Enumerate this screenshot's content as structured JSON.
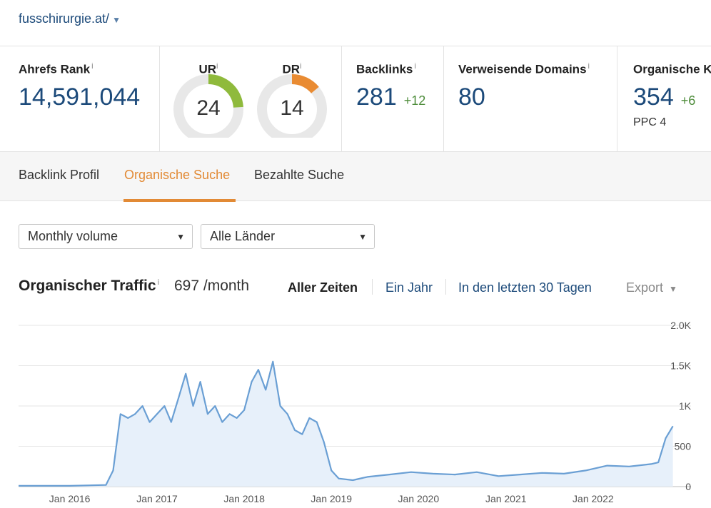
{
  "header": {
    "domain": "fusschirurgie.at/"
  },
  "metrics": {
    "ahrefs_rank": {
      "title": "Ahrefs Rank",
      "info": "i",
      "value": "14,591,044"
    },
    "ur": {
      "label": "UR",
      "info": "i",
      "value": "24",
      "fraction": 0.24,
      "color": "#8fba3c"
    },
    "dr": {
      "label": "DR",
      "info": "i",
      "value": "14",
      "fraction": 0.14,
      "color": "#e98b32"
    },
    "backlinks": {
      "title": "Backlinks",
      "info": "i",
      "value": "281",
      "delta": "+12"
    },
    "ref_domains": {
      "title": "Verweisende Domains",
      "info": "i",
      "value": "80"
    },
    "organic": {
      "title": "Organische Keywords",
      "info": "i",
      "value": "354",
      "delta": "+6",
      "ppc": "PPC 4"
    }
  },
  "tabs": [
    {
      "label": "Backlink Profil"
    },
    {
      "label": "Organische Suche"
    },
    {
      "label": "Bezahlte Suche"
    }
  ],
  "filters": {
    "volume": "Monthly volume",
    "country": "Alle Länder"
  },
  "chart_header": {
    "title": "Organischer Traffic",
    "info": "i",
    "summary": "697 /month",
    "ranges": [
      "Aller Zeiten",
      "Ein Jahr",
      "In den letzten 30 Tagen"
    ],
    "export": "Export"
  },
  "colors": {
    "accent": "#e28a35",
    "link": "#1c4a7a",
    "series": "#6a9fd4",
    "series_fill": "#e7f0fa"
  },
  "chart_data": {
    "type": "area",
    "x_ticks": [
      "Jan 2016",
      "Jan 2017",
      "Jan 2018",
      "Jan 2019",
      "Jan 2020",
      "Jan 2021",
      "Jan 2022"
    ],
    "y_ticks": [
      "2.0K",
      "1.5K",
      "1K",
      "500",
      "0"
    ],
    "ylim": [
      0,
      2000
    ],
    "grid": true,
    "series": [
      {
        "values": [
          [
            "2015-06",
            10
          ],
          [
            "2016-01",
            10
          ],
          [
            "2016-06",
            20
          ],
          [
            "2016-07",
            200
          ],
          [
            "2016-08",
            900
          ],
          [
            "2016-09",
            850
          ],
          [
            "2016-10",
            900
          ],
          [
            "2016-11",
            1000
          ],
          [
            "2016-12",
            800
          ],
          [
            "2017-01",
            900
          ],
          [
            "2017-02",
            1000
          ],
          [
            "2017-03",
            800
          ],
          [
            "2017-04",
            1100
          ],
          [
            "2017-05",
            1400
          ],
          [
            "2017-06",
            1000
          ],
          [
            "2017-07",
            1300
          ],
          [
            "2017-08",
            900
          ],
          [
            "2017-09",
            1000
          ],
          [
            "2017-10",
            800
          ],
          [
            "2017-11",
            900
          ],
          [
            "2017-12",
            850
          ],
          [
            "2018-01",
            950
          ],
          [
            "2018-02",
            1300
          ],
          [
            "2018-03",
            1450
          ],
          [
            "2018-04",
            1200
          ],
          [
            "2018-05",
            1550
          ],
          [
            "2018-06",
            1000
          ],
          [
            "2018-07",
            900
          ],
          [
            "2018-08",
            700
          ],
          [
            "2018-09",
            650
          ],
          [
            "2018-10",
            850
          ],
          [
            "2018-11",
            800
          ],
          [
            "2018-12",
            550
          ],
          [
            "2019-01",
            200
          ],
          [
            "2019-02",
            100
          ],
          [
            "2019-04",
            80
          ],
          [
            "2019-06",
            120
          ],
          [
            "2019-09",
            150
          ],
          [
            "2019-12",
            180
          ],
          [
            "2020-03",
            160
          ],
          [
            "2020-06",
            150
          ],
          [
            "2020-09",
            180
          ],
          [
            "2020-12",
            130
          ],
          [
            "2021-03",
            150
          ],
          [
            "2021-06",
            170
          ],
          [
            "2021-09",
            160
          ],
          [
            "2021-12",
            200
          ],
          [
            "2022-03",
            260
          ],
          [
            "2022-06",
            250
          ],
          [
            "2022-09",
            280
          ],
          [
            "2022-10",
            300
          ],
          [
            "2022-11",
            600
          ],
          [
            "2022-12",
            750
          ]
        ]
      }
    ]
  }
}
